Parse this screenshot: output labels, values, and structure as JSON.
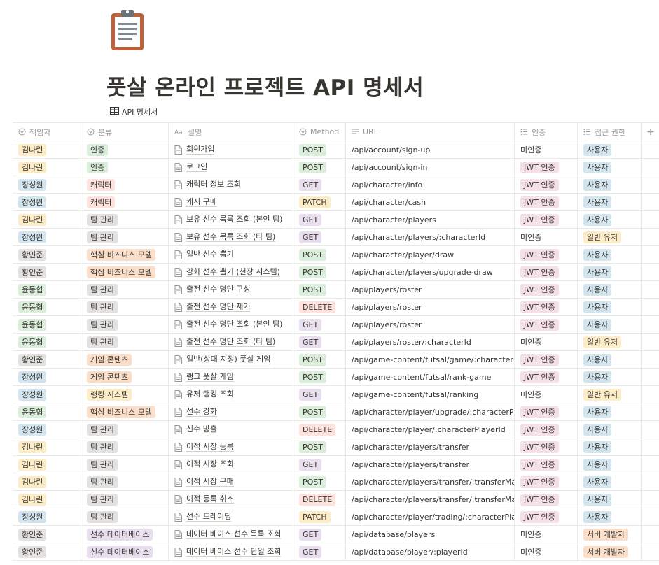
{
  "page": {
    "icon": "clipboard-icon",
    "title": "풋살 온라인 프로젝트 API 명세서",
    "db_link_icon": "table-icon",
    "db_link_label": "API 명세서"
  },
  "colors": {
    "yellow": "#fdecc8",
    "green": "#dbeddb",
    "red": "#ffe2dd",
    "orange": "#fadec9",
    "purple": "#e8deee",
    "pink": "#f5e0e9",
    "blue": "#d3e5ef",
    "gray": "#e3e2e0"
  },
  "columns": [
    {
      "label": "책임자",
      "icon": "select-icon"
    },
    {
      "label": "분류",
      "icon": "select-icon"
    },
    {
      "label": "설명",
      "icon": "title-icon"
    },
    {
      "label": "Method",
      "icon": "select-icon"
    },
    {
      "label": "URL",
      "icon": "text-icon"
    },
    {
      "label": "인증",
      "icon": "multi-select-icon"
    },
    {
      "label": "접근 권한",
      "icon": "multi-select-icon"
    },
    {
      "label": "+",
      "icon": "add-column-icon"
    }
  ],
  "rows": [
    {
      "owner": "김나린",
      "owner_color": "yellow",
      "cat": "인증",
      "cat_color": "green",
      "desc": "회원가입",
      "method": "POST",
      "method_color": "green",
      "url": "/api/account/sign-up",
      "auth": "미인증",
      "auth_color": "none",
      "access": "사용자",
      "access_color": "blue"
    },
    {
      "owner": "김나린",
      "owner_color": "yellow",
      "cat": "인증",
      "cat_color": "green",
      "desc": "로그인",
      "method": "POST",
      "method_color": "green",
      "url": "/api/account/sign-in",
      "auth": "JWT 인증",
      "auth_color": "pink",
      "access": "사용자",
      "access_color": "blue"
    },
    {
      "owner": "장성원",
      "owner_color": "blue",
      "cat": "캐릭터",
      "cat_color": "red",
      "desc": "캐릭터 정보 조회",
      "method": "GET",
      "method_color": "purple",
      "url": "/api/character/info",
      "auth": "JWT 인증",
      "auth_color": "pink",
      "access": "사용자",
      "access_color": "blue"
    },
    {
      "owner": "장성원",
      "owner_color": "blue",
      "cat": "캐릭터",
      "cat_color": "red",
      "desc": "캐시 구매",
      "method": "PATCH",
      "method_color": "yellow",
      "url": "/api/character/cash",
      "auth": "JWT 인증",
      "auth_color": "pink",
      "access": "사용자",
      "access_color": "blue"
    },
    {
      "owner": "김나린",
      "owner_color": "yellow",
      "cat": "팀 관리",
      "cat_color": "gray",
      "desc": "보유 선수 목록 조회 (본인 팀)",
      "method": "GET",
      "method_color": "purple",
      "url": "/api/character/players",
      "auth": "JWT 인증",
      "auth_color": "pink",
      "access": "사용자",
      "access_color": "blue"
    },
    {
      "owner": "장성원",
      "owner_color": "blue",
      "cat": "팀 관리",
      "cat_color": "gray",
      "desc": "보유 선수 목록 조회 (타 팀)",
      "method": "GET",
      "method_color": "purple",
      "url": "/api/character/players/:characterId",
      "auth": "미인증",
      "auth_color": "none",
      "access": "일반 유저",
      "access_color": "yellow"
    },
    {
      "owner": "황인준",
      "owner_color": "gray",
      "cat": "핵심 비즈니스 모델",
      "cat_color": "orange",
      "desc": "일반 선수 뽑기",
      "method": "POST",
      "method_color": "green",
      "url": "/api/character/player/draw",
      "auth": "JWT 인증",
      "auth_color": "pink",
      "access": "사용자",
      "access_color": "blue"
    },
    {
      "owner": "황인준",
      "owner_color": "gray",
      "cat": "핵심 비즈니스 모델",
      "cat_color": "orange",
      "desc": "강화 선수 뽑기 (천장 시스템)",
      "method": "POST",
      "method_color": "green",
      "url": "/api/character/players/upgrade-draw",
      "auth": "JWT 인증",
      "auth_color": "pink",
      "access": "사용자",
      "access_color": "blue"
    },
    {
      "owner": "윤동협",
      "owner_color": "green",
      "cat": "팀 관리",
      "cat_color": "gray",
      "desc": "출전 선수 명단 구성",
      "method": "POST",
      "method_color": "green",
      "url": "/api/players/roster",
      "auth": "JWT 인증",
      "auth_color": "pink",
      "access": "사용자",
      "access_color": "blue"
    },
    {
      "owner": "윤동협",
      "owner_color": "green",
      "cat": "팀 관리",
      "cat_color": "gray",
      "desc": "출전 선수 명단 제거",
      "method": "DELETE",
      "method_color": "red",
      "url": "/api/players/roster",
      "auth": "JWT 인증",
      "auth_color": "pink",
      "access": "사용자",
      "access_color": "blue"
    },
    {
      "owner": "윤동협",
      "owner_color": "green",
      "cat": "팀 관리",
      "cat_color": "gray",
      "desc": "출전 선수 명단 조회 (본인 팀)",
      "method": "GET",
      "method_color": "purple",
      "url": "/api/players/roster",
      "auth": "JWT 인증",
      "auth_color": "pink",
      "access": "사용자",
      "access_color": "blue"
    },
    {
      "owner": "윤동협",
      "owner_color": "green",
      "cat": "팀 관리",
      "cat_color": "gray",
      "desc": "출전 선수 명단 조회 (타 팀)",
      "method": "GET",
      "method_color": "purple",
      "url": "/api/players/roster/:characterId",
      "auth": "미인증",
      "auth_color": "none",
      "access": "일반 유저",
      "access_color": "yellow"
    },
    {
      "owner": "황인준",
      "owner_color": "gray",
      "cat": "게임 콘텐츠",
      "cat_color": "orange",
      "desc": "일반(상대 지정) 풋살 게임",
      "method": "POST",
      "method_color": "green",
      "url": "/api/game-content/futsal/game/:characterId",
      "auth": "JWT 인증",
      "auth_color": "pink",
      "access": "사용자",
      "access_color": "blue"
    },
    {
      "owner": "장성원",
      "owner_color": "blue",
      "cat": "게임 콘텐츠",
      "cat_color": "orange",
      "desc": "랭크 풋살 게임",
      "method": "POST",
      "method_color": "green",
      "url": "/api/game-content/futsal/rank-game",
      "auth": "JWT 인증",
      "auth_color": "pink",
      "access": "사용자",
      "access_color": "blue"
    },
    {
      "owner": "장성원",
      "owner_color": "blue",
      "cat": "랭킹 시스템",
      "cat_color": "yellow",
      "desc": "유저 랭킹 조회",
      "method": "GET",
      "method_color": "purple",
      "url": "/api/game-content/futsal/ranking",
      "auth": "미인증",
      "auth_color": "none",
      "access": "일반 유저",
      "access_color": "yellow"
    },
    {
      "owner": "윤동협",
      "owner_color": "green",
      "cat": "핵심 비즈니스 모델",
      "cat_color": "orange",
      "desc": "선수 강화",
      "method": "POST",
      "method_color": "green",
      "url": "/api/character/player/upgrade/:characterPlayerId",
      "auth": "JWT 인증",
      "auth_color": "pink",
      "access": "사용자",
      "access_color": "blue"
    },
    {
      "owner": "장성원",
      "owner_color": "blue",
      "cat": "팀 관리",
      "cat_color": "gray",
      "desc": "선수 방출",
      "method": "DELETE",
      "method_color": "red",
      "url": "/api/character/player/:characterPlayerId",
      "auth": "JWT 인증",
      "auth_color": "pink",
      "access": "사용자",
      "access_color": "blue"
    },
    {
      "owner": "김나린",
      "owner_color": "yellow",
      "cat": "팀 관리",
      "cat_color": "gray",
      "desc": "이적 시장 등록",
      "method": "POST",
      "method_color": "green",
      "url": "/api/character/players/transfer",
      "auth": "JWT 인증",
      "auth_color": "pink",
      "access": "사용자",
      "access_color": "blue"
    },
    {
      "owner": "김나린",
      "owner_color": "yellow",
      "cat": "팀 관리",
      "cat_color": "gray",
      "desc": "이적 시장 조회",
      "method": "GET",
      "method_color": "purple",
      "url": "/api/character/players/transfer",
      "auth": "JWT 인증",
      "auth_color": "pink",
      "access": "사용자",
      "access_color": "blue"
    },
    {
      "owner": "김나린",
      "owner_color": "yellow",
      "cat": "팀 관리",
      "cat_color": "gray",
      "desc": "이적 시장 구매",
      "method": "POST",
      "method_color": "green",
      "url": "/api/character/players/transfer/:transferMarketId",
      "auth": "JWT 인증",
      "auth_color": "pink",
      "access": "사용자",
      "access_color": "blue"
    },
    {
      "owner": "김나린",
      "owner_color": "yellow",
      "cat": "팀 관리",
      "cat_color": "gray",
      "desc": "이적 등록 취소",
      "method": "DELETE",
      "method_color": "red",
      "url": "/api/character/players/transfer/:transferMarketId",
      "auth": "JWT 인증",
      "auth_color": "pink",
      "access": "사용자",
      "access_color": "blue"
    },
    {
      "owner": "장성원",
      "owner_color": "blue",
      "cat": "팀 관리",
      "cat_color": "gray",
      "desc": "선수 트레이딩",
      "method": "PATCH",
      "method_color": "yellow",
      "url": "/api/character/player/trading/:characterPlayerId",
      "auth": "JWT 인증",
      "auth_color": "pink",
      "access": "사용자",
      "access_color": "blue"
    },
    {
      "owner": "황인준",
      "owner_color": "gray",
      "cat": "선수 데이터베이스",
      "cat_color": "purple",
      "desc": "데이터 베이스 선수 목록 조회",
      "method": "GET",
      "method_color": "purple",
      "url": "/api/database/players",
      "auth": "미인증",
      "auth_color": "none",
      "access": "서버 개발자",
      "access_color": "orange"
    },
    {
      "owner": "황인준",
      "owner_color": "gray",
      "cat": "선수 데이터베이스",
      "cat_color": "purple",
      "desc": "데이터 베이스 선수 단일 조회",
      "method": "GET",
      "method_color": "purple",
      "url": "/api/database/player/:playerId",
      "auth": "미인증",
      "auth_color": "none",
      "access": "서버 개발자",
      "access_color": "orange"
    }
  ]
}
